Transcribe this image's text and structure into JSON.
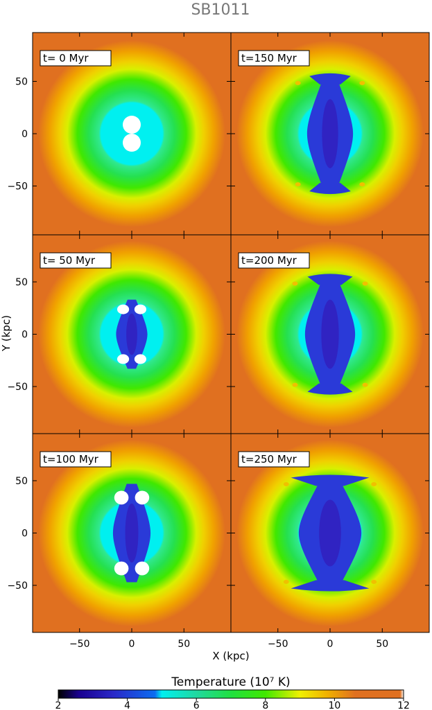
{
  "title": "SB1011",
  "chart_data": {
    "type": "heatmap",
    "title": "SB1011",
    "xlabel": "X (kpc)",
    "ylabel": "Y (kpc)",
    "xlim": [
      -95,
      95
    ],
    "ylim": [
      -95,
      95
    ],
    "x_ticks": [
      -50,
      0,
      50
    ],
    "y_ticks": [
      50,
      0,
      -50
    ],
    "x_tick_labels": [
      "−50",
      "0",
      "50"
    ],
    "y_tick_labels": [
      "50",
      "0",
      "−50"
    ],
    "panels": [
      {
        "label": "t=  0 Myr",
        "time_myr": 0,
        "bubble_halfwidth_kpc": 11,
        "bubble_halfheight_kpc": 17
      },
      {
        "label": "t=150 Myr",
        "time_myr": 150,
        "bubble_halfwidth_kpc": 22,
        "bubble_halfheight_kpc": 55
      },
      {
        "label": "t= 50 Myr",
        "time_myr": 50,
        "bubble_halfwidth_kpc": 15,
        "bubble_halfheight_kpc": 33
      },
      {
        "label": "t=200 Myr",
        "time_myr": 200,
        "bubble_halfwidth_kpc": 24,
        "bubble_halfheight_kpc": 55
      },
      {
        "label": "t=100 Myr",
        "time_myr": 100,
        "bubble_halfwidth_kpc": 18,
        "bubble_halfheight_kpc": 47
      },
      {
        "label": "t=250 Myr",
        "time_myr": 250,
        "bubble_halfwidth_kpc": 30,
        "bubble_halfheight_kpc": 53
      }
    ],
    "colorbar": {
      "label": "Temperature (10⁷ K)",
      "range": [
        2,
        12
      ],
      "ticks": [
        2,
        4,
        6,
        8,
        10,
        12
      ],
      "tick_labels": [
        "2",
        "4",
        "6",
        "8",
        "10",
        "12"
      ],
      "stops": [
        {
          "value": 2.0,
          "color": "#000000"
        },
        {
          "value": 2.6,
          "color": "#1a0090"
        },
        {
          "value": 3.6,
          "color": "#2a28c8"
        },
        {
          "value": 4.8,
          "color": "#0c6cf0"
        },
        {
          "value": 5.0,
          "color": "#00f0f0"
        },
        {
          "value": 6.0,
          "color": "#20d8a0"
        },
        {
          "value": 7.0,
          "color": "#20e040"
        },
        {
          "value": 8.0,
          "color": "#40e800"
        },
        {
          "value": 9.0,
          "color": "#f0f000"
        },
        {
          "value": 9.8,
          "color": "#f0b000"
        },
        {
          "value": 10.6,
          "color": "#e07020"
        },
        {
          "value": 12.0,
          "color": "#ffffff"
        }
      ]
    },
    "colors": {
      "bubble_core": "#2a3ad8",
      "bubble_inner": "#3510b0",
      "injection_region": "#ffffff"
    }
  }
}
